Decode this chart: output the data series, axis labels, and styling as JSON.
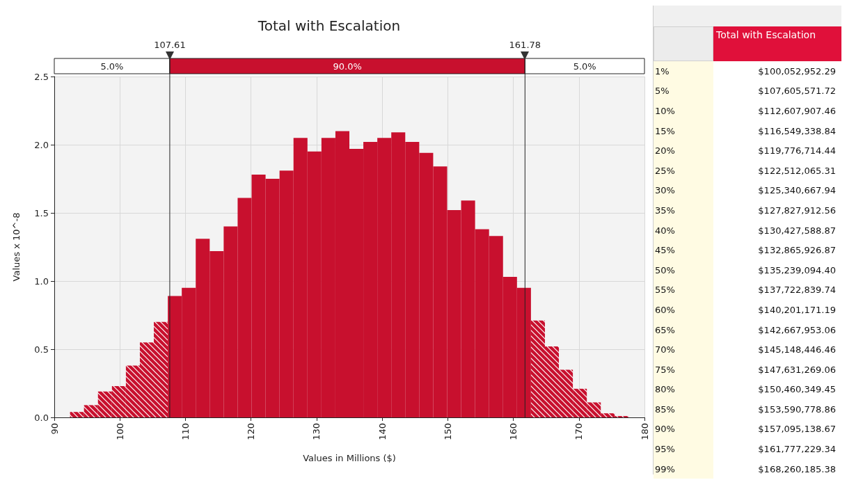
{
  "chart_data": [
    {
      "type": "histogram",
      "title": "Total with Escalation",
      "xlabel": "Values in Millions ($)",
      "ylabel": "Values x 10^-8",
      "color": "#c8102e",
      "bins": [
        92.4,
        94.53,
        96.66,
        98.79,
        100.92,
        103.05,
        105.18,
        107.31,
        109.44,
        111.57,
        113.7,
        115.83,
        117.96,
        120.09,
        122.22,
        124.35,
        126.48,
        128.61,
        130.74,
        132.87,
        135.0,
        137.13,
        139.26,
        141.39,
        143.52,
        145.65,
        147.78,
        149.91,
        152.04,
        154.17,
        156.3,
        158.43,
        160.56,
        162.69,
        164.82,
        166.95,
        169.08,
        171.21,
        173.34,
        175.47,
        177.6
      ],
      "values": [
        0.04,
        0.09,
        0.19,
        0.23,
        0.38,
        0.55,
        0.7,
        0.89,
        0.95,
        1.31,
        1.22,
        1.4,
        1.61,
        1.78,
        1.75,
        1.81,
        2.05,
        1.95,
        2.05,
        2.1,
        1.97,
        2.02,
        2.05,
        2.09,
        2.02,
        1.94,
        1.84,
        1.52,
        1.59,
        1.38,
        1.33,
        1.03,
        0.95,
        0.71,
        0.52,
        0.35,
        0.21,
        0.11,
        0.03,
        0.01
      ],
      "xlim": [
        90,
        180
      ],
      "xticks": [
        90,
        100,
        110,
        120,
        130,
        140,
        150,
        160,
        170,
        180
      ],
      "ylim": [
        0,
        2.5
      ],
      "yticks": [
        {
          "value": 0,
          "label": "0.0"
        },
        0.5,
        {
          "value": 1,
          "label": "1.0"
        },
        1.5,
        {
          "value": 2,
          "label": "2.0"
        },
        2.5
      ],
      "grid": true,
      "ref_lines": [
        {
          "axis": "x",
          "value": 107.61,
          "label": "107.61"
        },
        {
          "axis": "x",
          "value": 161.78,
          "label": "161.78"
        }
      ],
      "annotations": [
        "5.0%",
        "90.0%",
        "5.0%"
      ]
    },
    {
      "type": "other",
      "title": "Total with Escalation",
      "categories": [
        "1%",
        "5%",
        "10%",
        "15%",
        "20%",
        "25%",
        "30%",
        "35%",
        "40%",
        "45%",
        "50%",
        "55%",
        "60%",
        "65%",
        "70%",
        "75%",
        "80%",
        "85%",
        "90%",
        "95%",
        "99%"
      ],
      "value_labels": [
        "$100,052,952.29",
        "$107,605,571.72",
        "$112,607,907.46",
        "$116,549,338.84",
        "$119,776,714.44",
        "$122,512,065.31",
        "$125,340,667.94",
        "$127,827,912.56",
        "$130,427,588.87",
        "$132,865,926.87",
        "$135,239,094.40",
        "$137,722,839.74",
        "$140,201,171.19",
        "$142,667,953.06",
        "$145,148,446.46",
        "$147,631,269.06",
        "$150,460,349.45",
        "$153,590,778.86",
        "$157,095,138.67",
        "$161,777,229.34",
        "$168,260,185.38"
      ]
    }
  ]
}
